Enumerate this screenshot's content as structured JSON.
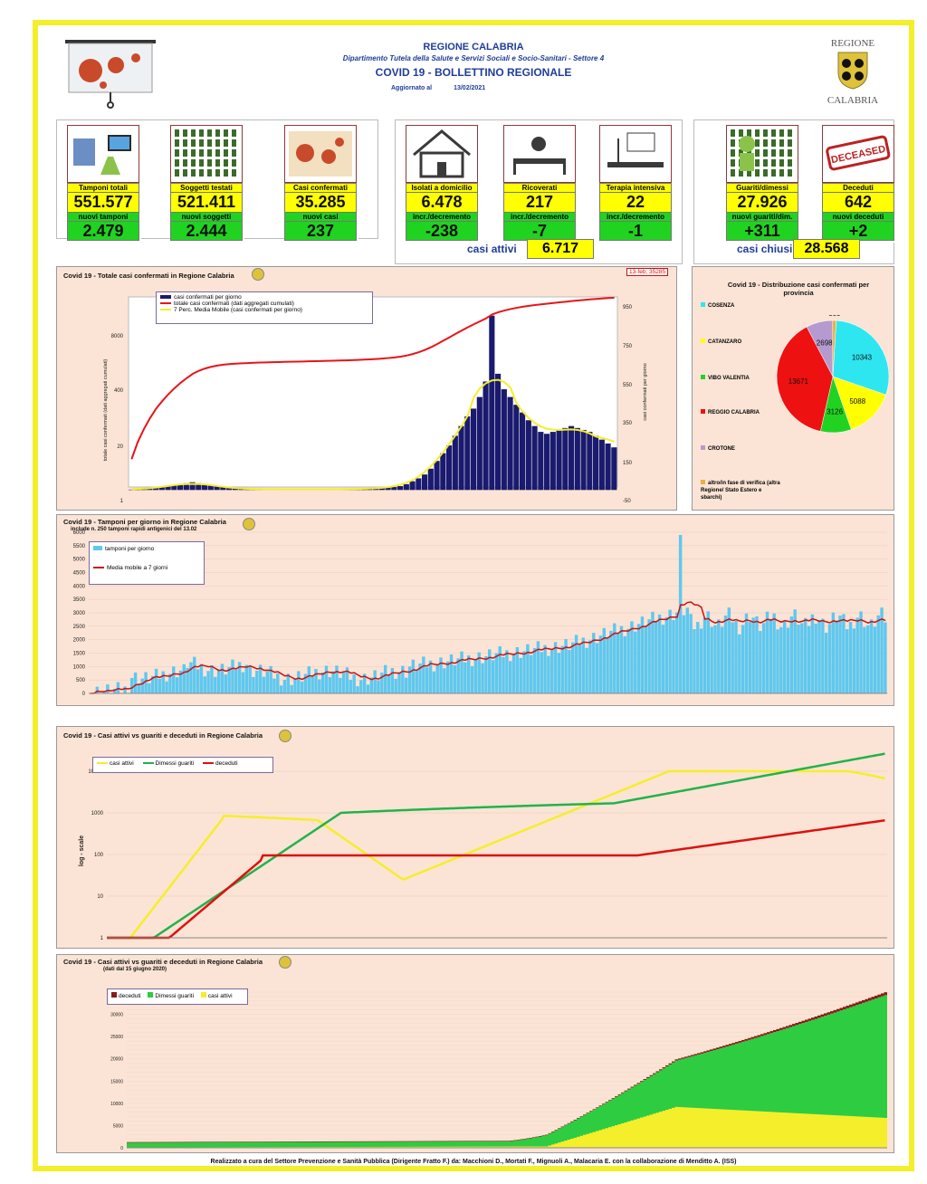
{
  "header": {
    "region": "REGIONE CALABRIA",
    "department": "Dipartimento Tutela della Salute e Servizi Sociali e Socio-Sanitari - Settore 4",
    "bulletin": "COVID 19 - BOLLETTINO REGIONALE",
    "updated_label": "Aggiornato al",
    "updated_date": "13/02/2021",
    "logo_top": "REGIONE",
    "logo_bottom": "CALABRIA"
  },
  "kpis": [
    {
      "icon": "lab-test-icon",
      "label": "Tamponi totali",
      "value": "551.577",
      "sub_label": "nuovi tamponi",
      "sub_value": "2.479"
    },
    {
      "icon": "people-tested-icon",
      "label": "Soggetti testati",
      "value": "521.411",
      "sub_label": "nuovi soggetti testati",
      "sub_value": "2.444"
    },
    {
      "icon": "confirmed-case-icon",
      "label": "Casi confermati",
      "value": "35.285",
      "sub_label": "nuovi casi",
      "sub_value": "237"
    },
    {
      "icon": "home-isolation-icon",
      "label": "Isolati a domicilio",
      "value": "6.478",
      "sub_label": "incr./decremento",
      "sub_value": "-238"
    },
    {
      "icon": "hospital-bed-icon",
      "label": "Ricoverati",
      "value": "217",
      "sub_label": "incr./decremento",
      "sub_value": "-7"
    },
    {
      "icon": "intensive-care-icon",
      "label": "Terapia intensiva",
      "value": "22",
      "sub_label": "incr./decremento",
      "sub_value": "-1"
    },
    {
      "icon": "recovered-icon",
      "label": "Guariti/dimessi",
      "value": "27.926",
      "sub_label": "nuovi guariti/dim.",
      "sub_value": "+311"
    },
    {
      "icon": "deceased-stamp-icon",
      "label": "Deceduti",
      "value": "642",
      "sub_label": "nuovi deceduti",
      "sub_value": "+2"
    }
  ],
  "active_cases": {
    "label": "casi attivi",
    "value": "6.717"
  },
  "closed_cases": {
    "label": "casi chiusi",
    "value": "28.568"
  },
  "deceased_stamp": "DECEASED",
  "chart_data": [
    {
      "type": "bar",
      "title": "Covid 19 - Totale casi confermati in Regione Calabria",
      "ylabel": "totale casi confermati (dati aggregati cumulati)",
      "y2label": "casi confermati per giorno",
      "left_ticks": [
        "8000",
        "400",
        "20",
        "1"
      ],
      "right_ticks": [
        "950",
        "750",
        "550",
        "350",
        "150",
        "-50"
      ],
      "callout": "13-feb; 35285",
      "legend": [
        "casi confermati per giorno",
        "totale casi confermati (dati aggregati cumulati)",
        "7 Perc. Media Mobile (casi confermati per giorno)"
      ],
      "colors": {
        "bars": "#1a1a6e",
        "cumulative": "#e8141a",
        "moving_avg": "#f5ee2a"
      },
      "series_daily_shape": [
        2,
        3,
        5,
        8,
        12,
        15,
        20,
        25,
        30,
        35,
        40,
        35,
        30,
        25,
        20,
        15,
        10,
        8,
        6,
        5,
        5,
        4,
        4,
        3,
        3,
        3,
        3,
        3,
        3,
        3,
        3,
        3,
        3,
        3,
        4,
        4,
        5,
        5,
        6,
        7,
        8,
        10,
        12,
        15,
        20,
        30,
        45,
        60,
        80,
        110,
        150,
        190,
        230,
        280,
        330,
        380,
        420,
        480,
        560,
        900,
        600,
        520,
        480,
        440,
        400,
        360,
        330,
        300,
        290,
        300,
        310,
        320,
        330,
        320,
        310,
        300,
        280,
        260,
        240,
        220
      ],
      "series_cumulative_note": "log scale from 1 to ~35285"
    },
    {
      "type": "pie",
      "title": "Covid 19 - Distribuzione casi confermati per provincia",
      "categories": [
        "COSENZA",
        "CATANZARO",
        "VIBO VALENTIA",
        "REGGIO CALABRIA",
        "CROTONE",
        "altro/in fase di verifica (altra Regione/ Stato Estero e sbarchi)"
      ],
      "values": [
        10343,
        5088,
        3126,
        13671,
        2698,
        359
      ],
      "colors": [
        "#2ee6f0",
        "#ffff00",
        "#21d321",
        "#ee1111",
        "#b59acf",
        "#e8b33a"
      ]
    },
    {
      "type": "bar",
      "title": "Covid 19 - Tamponi per giorno in Regione Calabria",
      "subtitle": "include n. 250 tamponi rapidi  antigenici del  13.02",
      "y_ticks": [
        "6000",
        "5500",
        "5000",
        "4500",
        "4000",
        "3500",
        "3000",
        "2500",
        "2000",
        "1500",
        "1000",
        "500",
        "0"
      ],
      "ylim": [
        0,
        6000
      ],
      "legend": [
        "tamponi per giorno",
        "Media mobile a 7 giorni"
      ],
      "colors": {
        "bars": "#5ec8ef",
        "moving_avg": "#cc1111"
      }
    },
    {
      "type": "line",
      "title": "Covid 19 - Casi attivi vs guariti e deceduti in Regione Calabria",
      "ylabel": "log - scale",
      "y_ticks": [
        "10000",
        "1000",
        "100",
        "10",
        "1"
      ],
      "legend": [
        "casi attivi",
        "Dimessi guariti",
        "deceduti"
      ],
      "colors": {
        "attivi": "#f5ee2a",
        "guariti": "#21b34a",
        "deceduti": "#dd1111"
      }
    },
    {
      "type": "area",
      "title": "Covid 19 - Casi attivi vs guariti e deceduti in Regione Calabria",
      "subtitle": "(dati dal 15 giugno 2020)",
      "legend": [
        "deceduti",
        "Dimessi guariti",
        "casi attivi"
      ],
      "ylim": [
        0,
        35000
      ],
      "colors": {
        "deceduti": "#8b1a1a",
        "guariti": "#2ecc40",
        "attivi": "#f5ee2a"
      }
    }
  ],
  "footer": "Realizzato a cura del Settore Prevenzione e Sanità Pubblica (Dirigente Fratto F.) da:  Macchioni D., Mortati F., Mignuoli A., Malacaria E. con la collaborazione di Menditto A. (ISS)"
}
